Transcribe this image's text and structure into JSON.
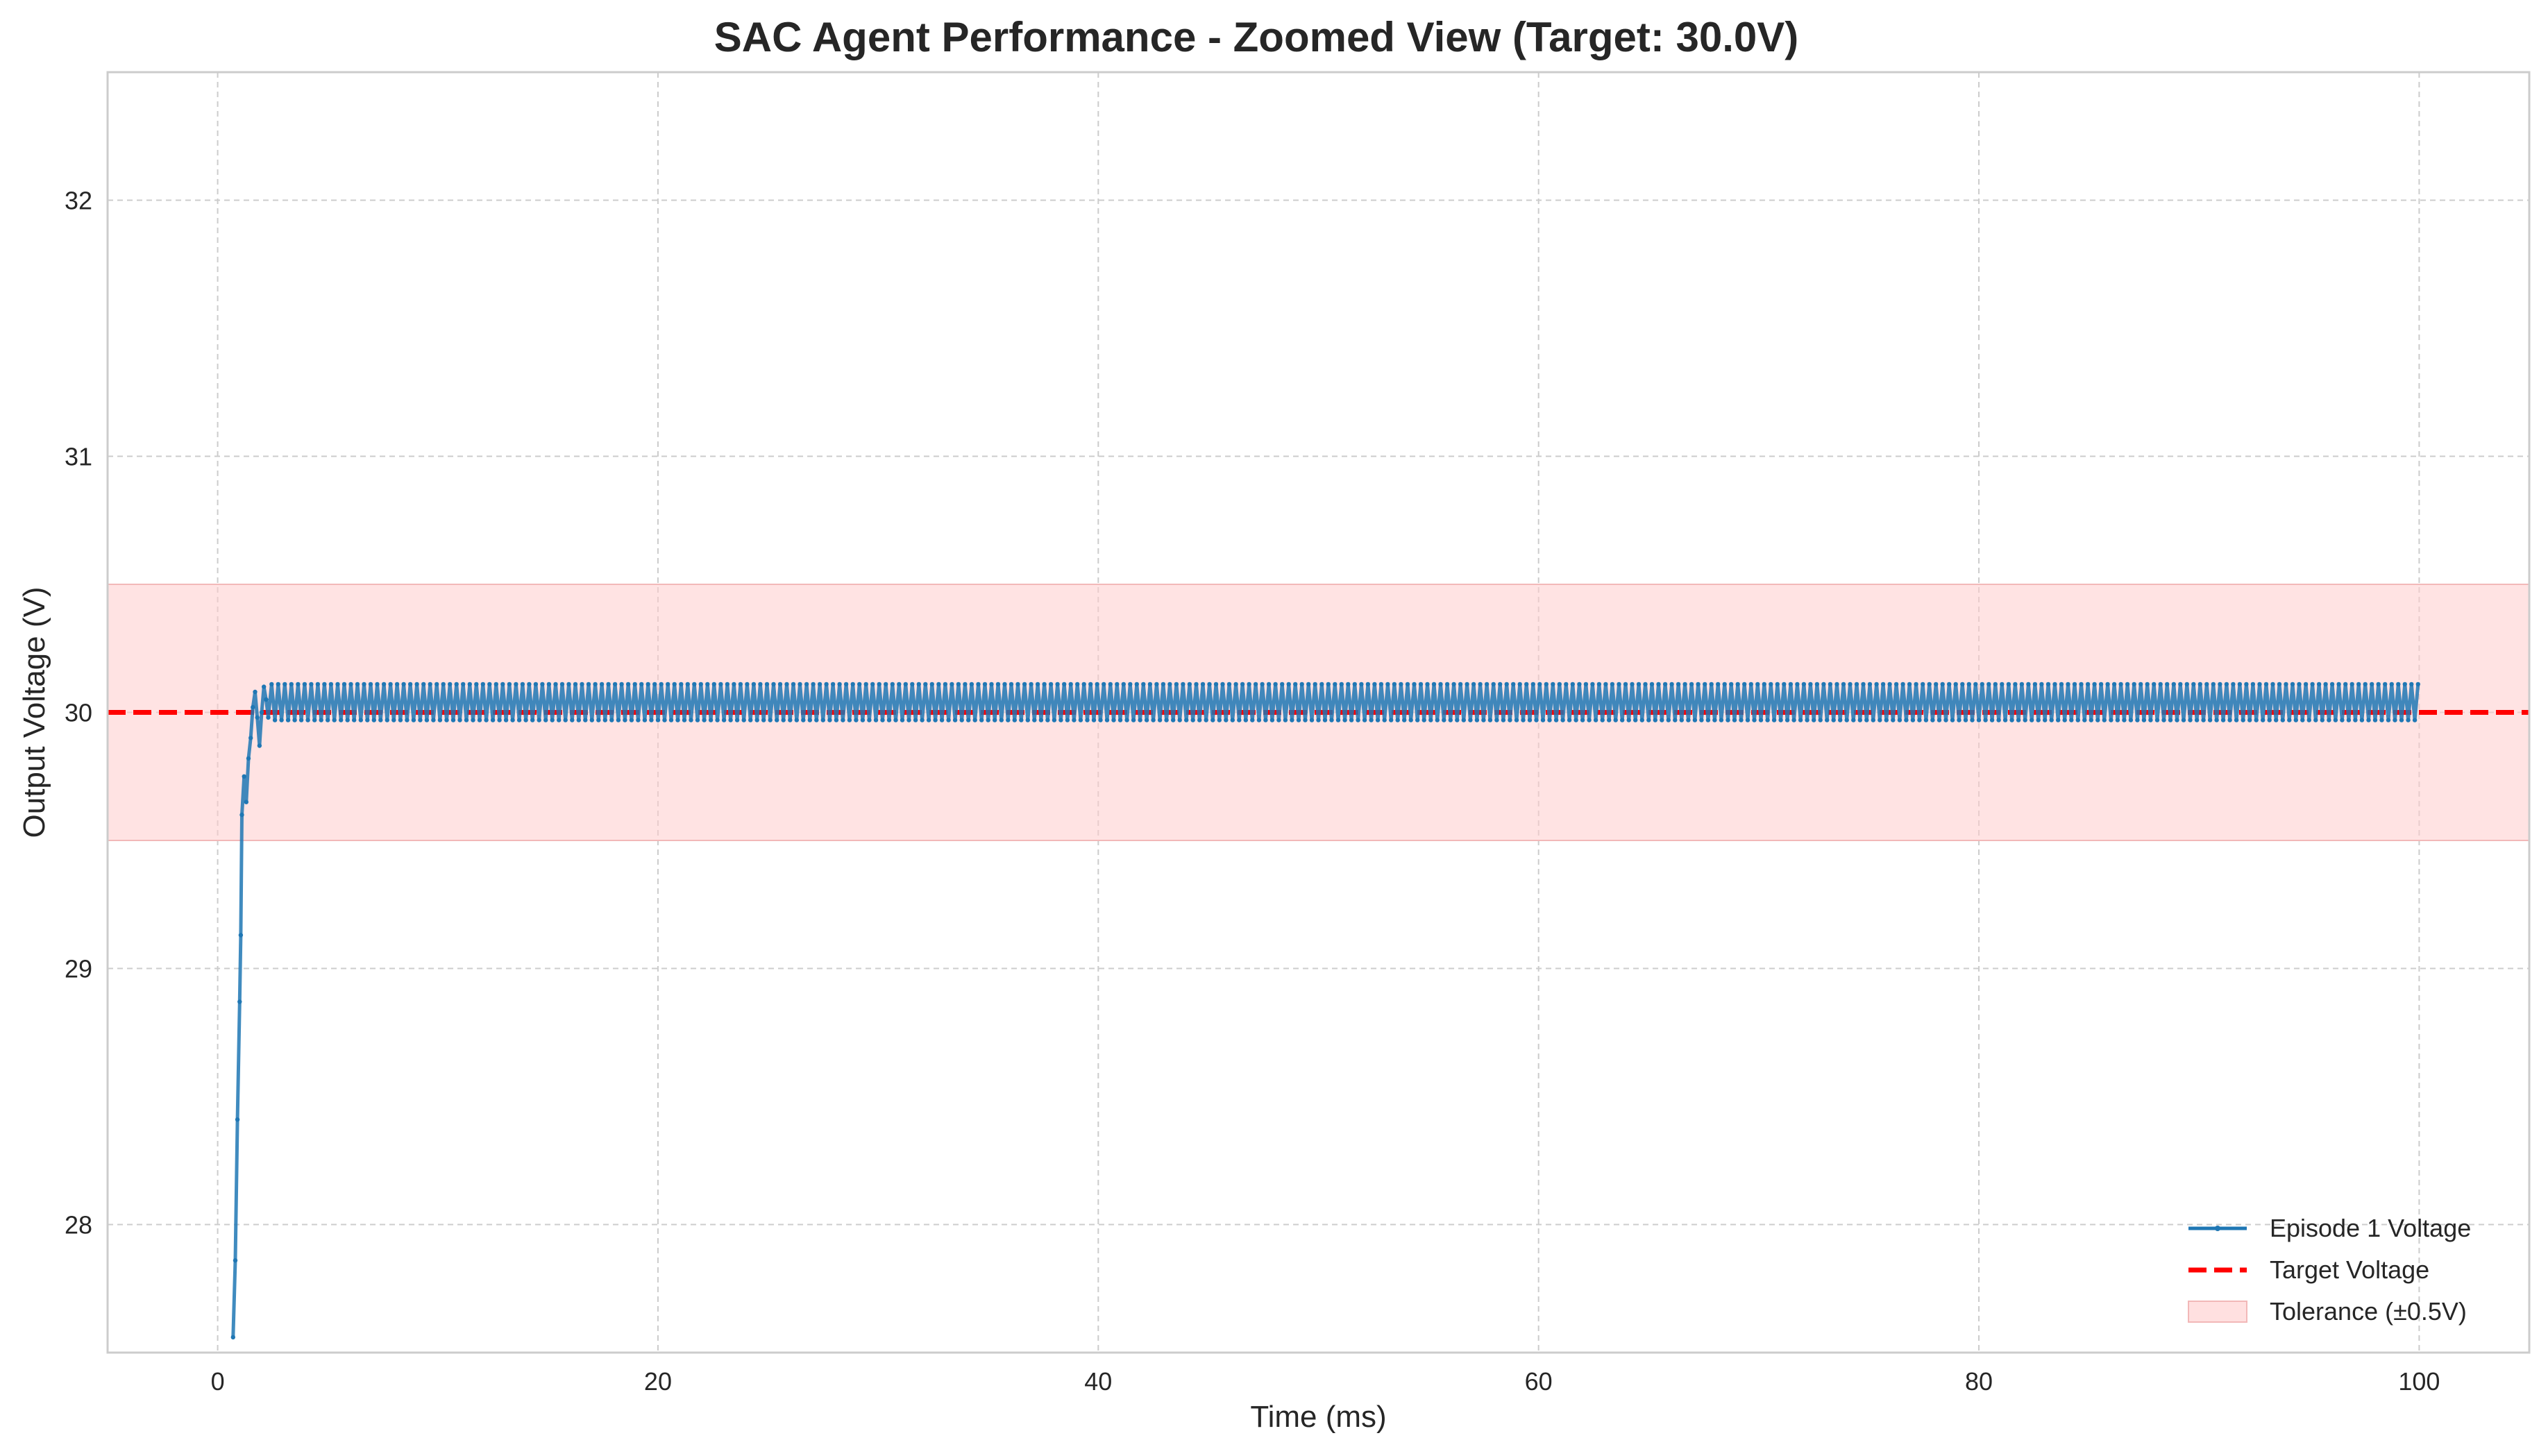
{
  "chart_data": {
    "type": "line",
    "title": "SAC Agent Performance - Zoomed View (Target: 30.0V)",
    "xlabel": "Time (ms)",
    "ylabel": "Output Voltage (V)",
    "xlim": [
      -5,
      105
    ],
    "ylim": [
      27.5,
      32.5
    ],
    "xticks": [
      0,
      20,
      40,
      60,
      80,
      100
    ],
    "yticks": [
      28,
      29,
      30,
      31,
      32
    ],
    "xtick_labels": [
      "0",
      "20",
      "40",
      "60",
      "80",
      "100"
    ],
    "ytick_labels": [
      "28",
      "29",
      "30",
      "31",
      "32"
    ],
    "grid": true,
    "legend_position": "lower-right",
    "series": [
      {
        "name": "Episode 1 Voltage",
        "color": "#1f77b4",
        "style": "solid-with-markers",
        "startup": {
          "x": [
            0.7,
            0.8,
            0.9,
            1.0,
            1.05,
            1.1,
            1.2,
            1.3,
            1.4,
            1.5,
            1.6,
            1.7,
            1.8,
            1.9,
            2.0,
            2.1,
            2.2,
            2.3
          ],
          "y": [
            27.56,
            27.86,
            28.41,
            28.87,
            29.13,
            29.6,
            29.75,
            29.65,
            29.82,
            29.9,
            30.02,
            30.08,
            29.98,
            29.87,
            30.0,
            30.1,
            30.05,
            29.98
          ]
        },
        "steady_state": {
          "x_start": 2.3,
          "x_end": 100,
          "period": 0.3,
          "low": 29.97,
          "high": 30.11
        }
      },
      {
        "name": "Target Voltage",
        "color": "#ff0000",
        "style": "dashed",
        "y": 30.0
      }
    ],
    "bands": [
      {
        "name": "Tolerance (±0.5V)",
        "color": "#ffcccc",
        "y_low": 29.5,
        "y_high": 30.5
      }
    ]
  }
}
